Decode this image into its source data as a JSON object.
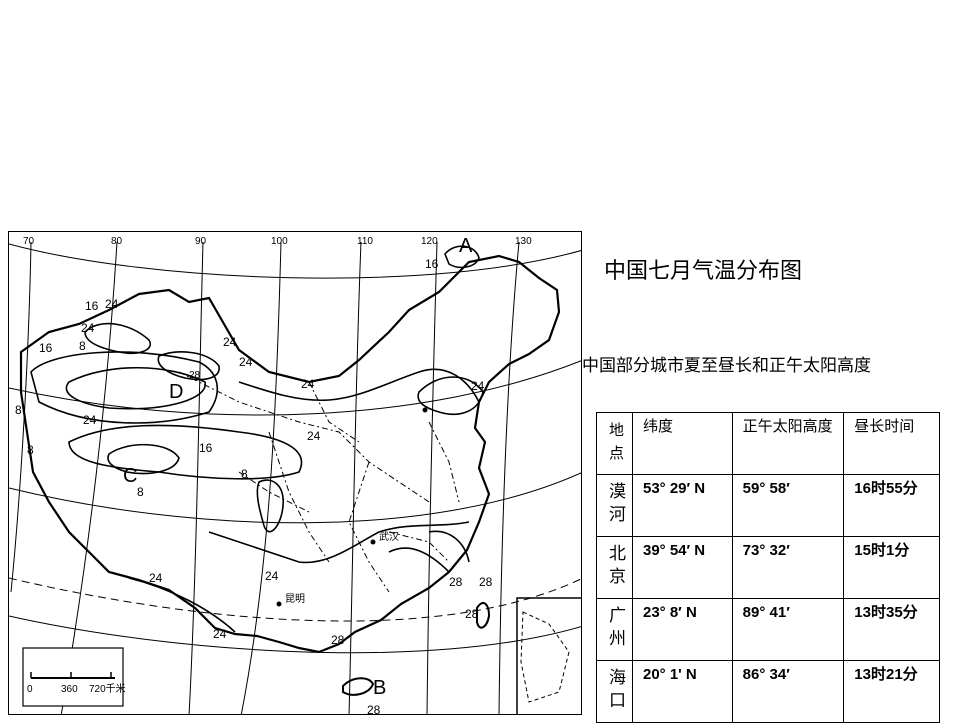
{
  "map": {
    "title": "中国七月气温分布图",
    "longitudes": [
      "70",
      "80",
      "90",
      "100",
      "110",
      "120",
      "130"
    ],
    "isotherm_labels": [
      "16",
      "24",
      "24",
      "16",
      "8",
      "24",
      "8",
      "28",
      "24",
      "24",
      "8",
      "24",
      "8",
      "16",
      "24",
      "8",
      "24",
      "24",
      "24",
      "24",
      "28",
      "28",
      "28",
      "28",
      "28",
      "16"
    ],
    "region_labels": [
      "D",
      "C",
      "B",
      "A"
    ],
    "cities": [
      "武汉",
      "昆明"
    ],
    "scale_bar": {
      "ticks": [
        "0",
        "360",
        "720千米"
      ]
    }
  },
  "table": {
    "title": "中国部分城市夏至昼长和正午太阳高度",
    "headers": {
      "place": "地点",
      "latitude": "纬度",
      "noon_sun": "正午太阳高度",
      "day_length": "昼长时间"
    },
    "rows": [
      {
        "place": "漠河",
        "latitude": "53° 29′ N",
        "noon_sun": "59° 58′",
        "day_length": "16时55分"
      },
      {
        "place": "北京",
        "latitude": "39° 54′ N",
        "noon_sun": "73° 32′",
        "day_length": "15时1分"
      },
      {
        "place": "广州",
        "latitude": "23° 8′ N",
        "noon_sun": "89° 41′",
        "day_length": "13时35分"
      },
      {
        "place": "海口",
        "latitude": "20° 1' N",
        "noon_sun": "86° 34′",
        "day_length": "13时21分"
      }
    ]
  }
}
